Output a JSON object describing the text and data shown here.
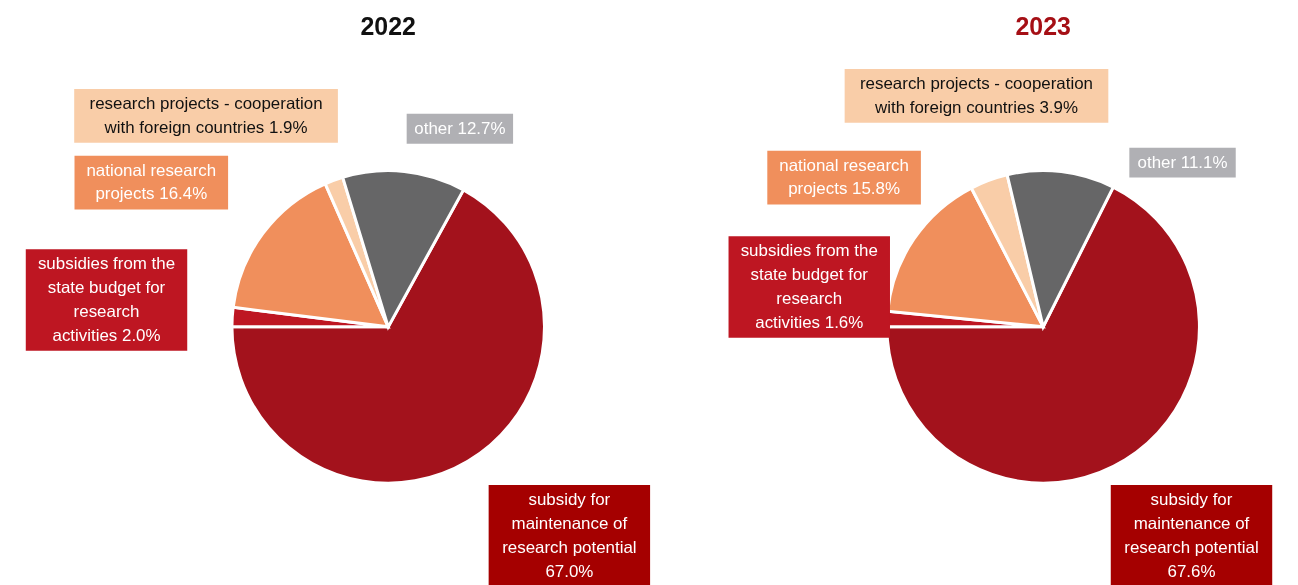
{
  "chart_data": [
    {
      "type": "pie",
      "title": "2022",
      "categories": [
        "subsidy for maintenance of research potential",
        "subsidies from the state budget for research activities",
        "national research projects",
        "research projects - cooperation with foreign countries",
        "other"
      ],
      "values": [
        67.0,
        2.0,
        16.4,
        1.9,
        12.7
      ],
      "value_labels": [
        "67.0%",
        "2.0%",
        "16.4%",
        "1.9%",
        "12.7%"
      ],
      "colors": [
        "#a3121c",
        "#be1622",
        "#f08f5c",
        "#f9cda8",
        "#666667"
      ]
    },
    {
      "type": "pie",
      "title": "2023",
      "categories": [
        "subsidy for maintenance of research potential",
        "subsidies from the state budget for research activities",
        "national research projects",
        "research projects - cooperation with foreign countries",
        "other"
      ],
      "values": [
        67.6,
        1.6,
        15.8,
        3.9,
        11.1
      ],
      "value_labels": [
        "67.6%",
        "1.6%",
        "15.8%",
        "3.9%",
        "11.1%"
      ],
      "colors": [
        "#a3121c",
        "#be1622",
        "#f08f5c",
        "#f9cda8",
        "#666667"
      ]
    }
  ]
}
